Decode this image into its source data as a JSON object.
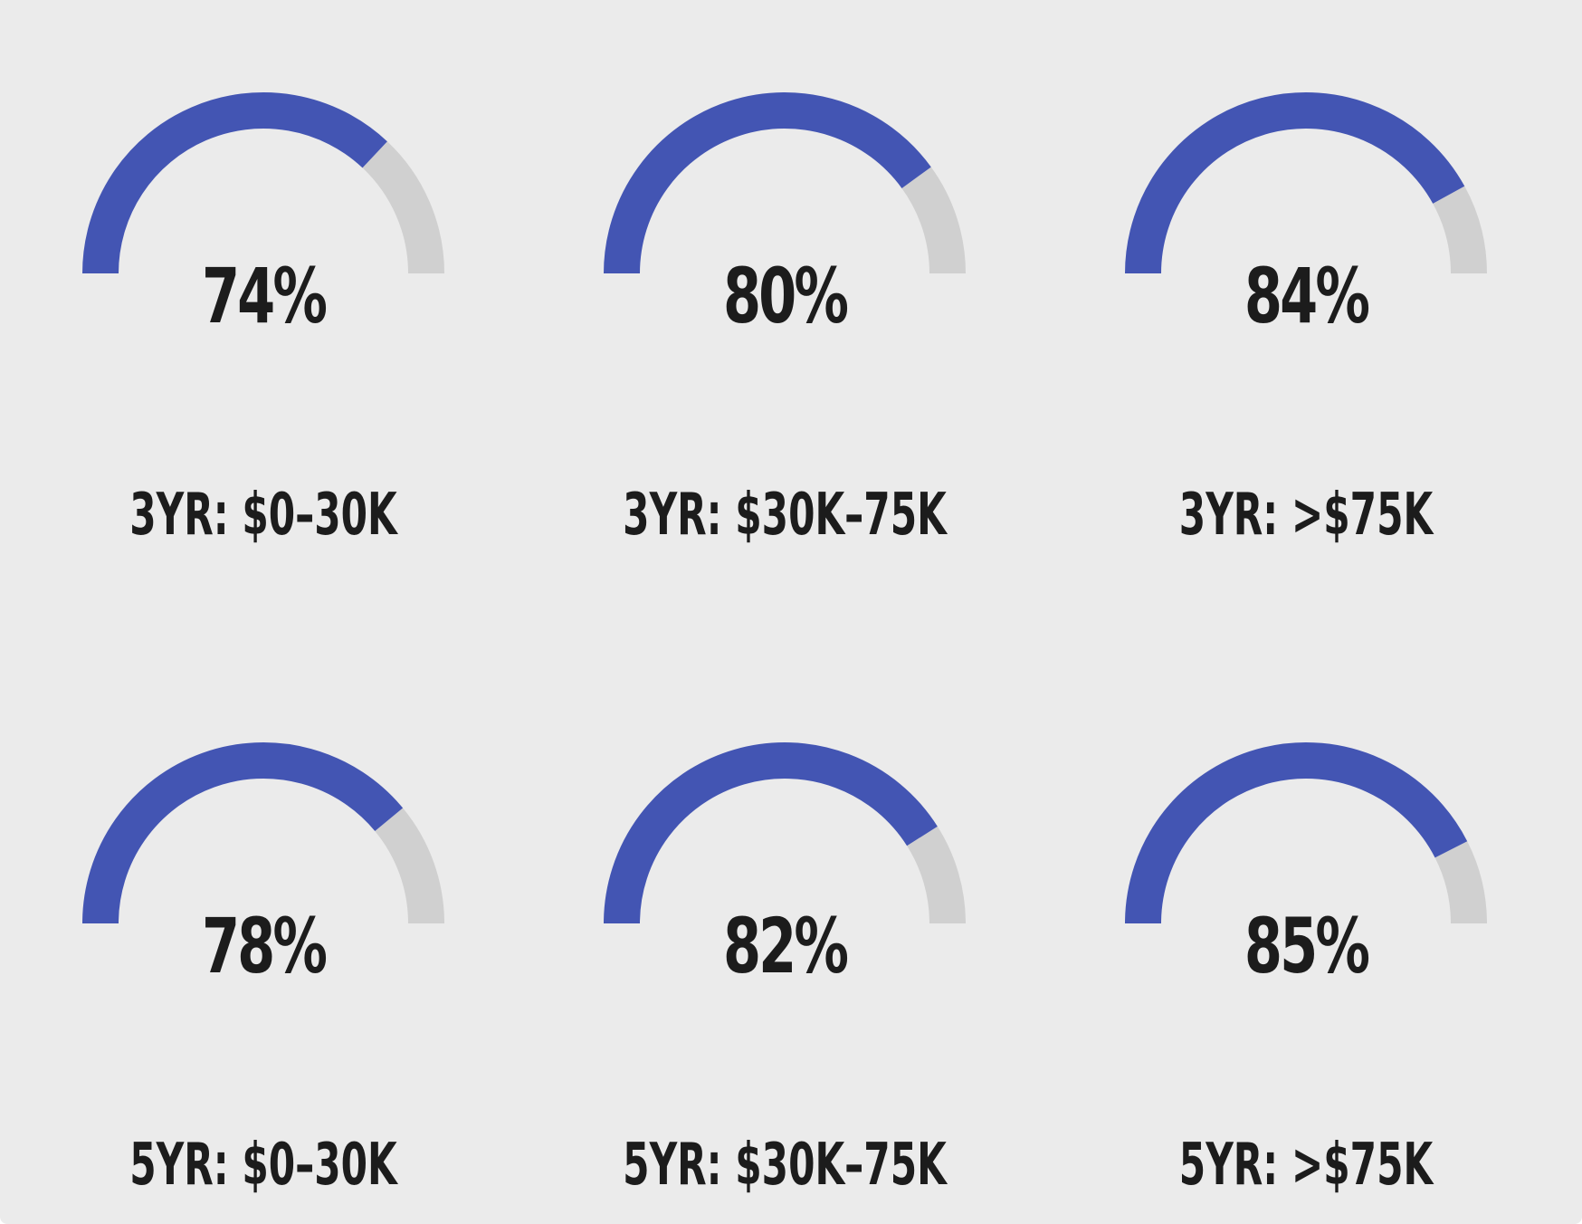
{
  "chart_data": {
    "type": "gauge",
    "range": [
      0,
      100
    ],
    "unit": "%",
    "colors": {
      "filled": "#4355b3",
      "track": "#d0d0d0",
      "background": "#ebebeb",
      "text": "#1c1c1c"
    },
    "gauges": [
      {
        "label": "3YR: $0–30K",
        "value": 74,
        "display": "74%"
      },
      {
        "label": "3YR: $30K–75K",
        "value": 80,
        "display": "80%"
      },
      {
        "label": "3YR: >$75K",
        "value": 84,
        "display": "84%"
      },
      {
        "label": "5YR: $0–30K",
        "value": 78,
        "display": "78%"
      },
      {
        "label": "5YR: $30K–75K",
        "value": 82,
        "display": "82%"
      },
      {
        "label": "5YR: >$75K",
        "value": 85,
        "display": "85%"
      }
    ]
  }
}
